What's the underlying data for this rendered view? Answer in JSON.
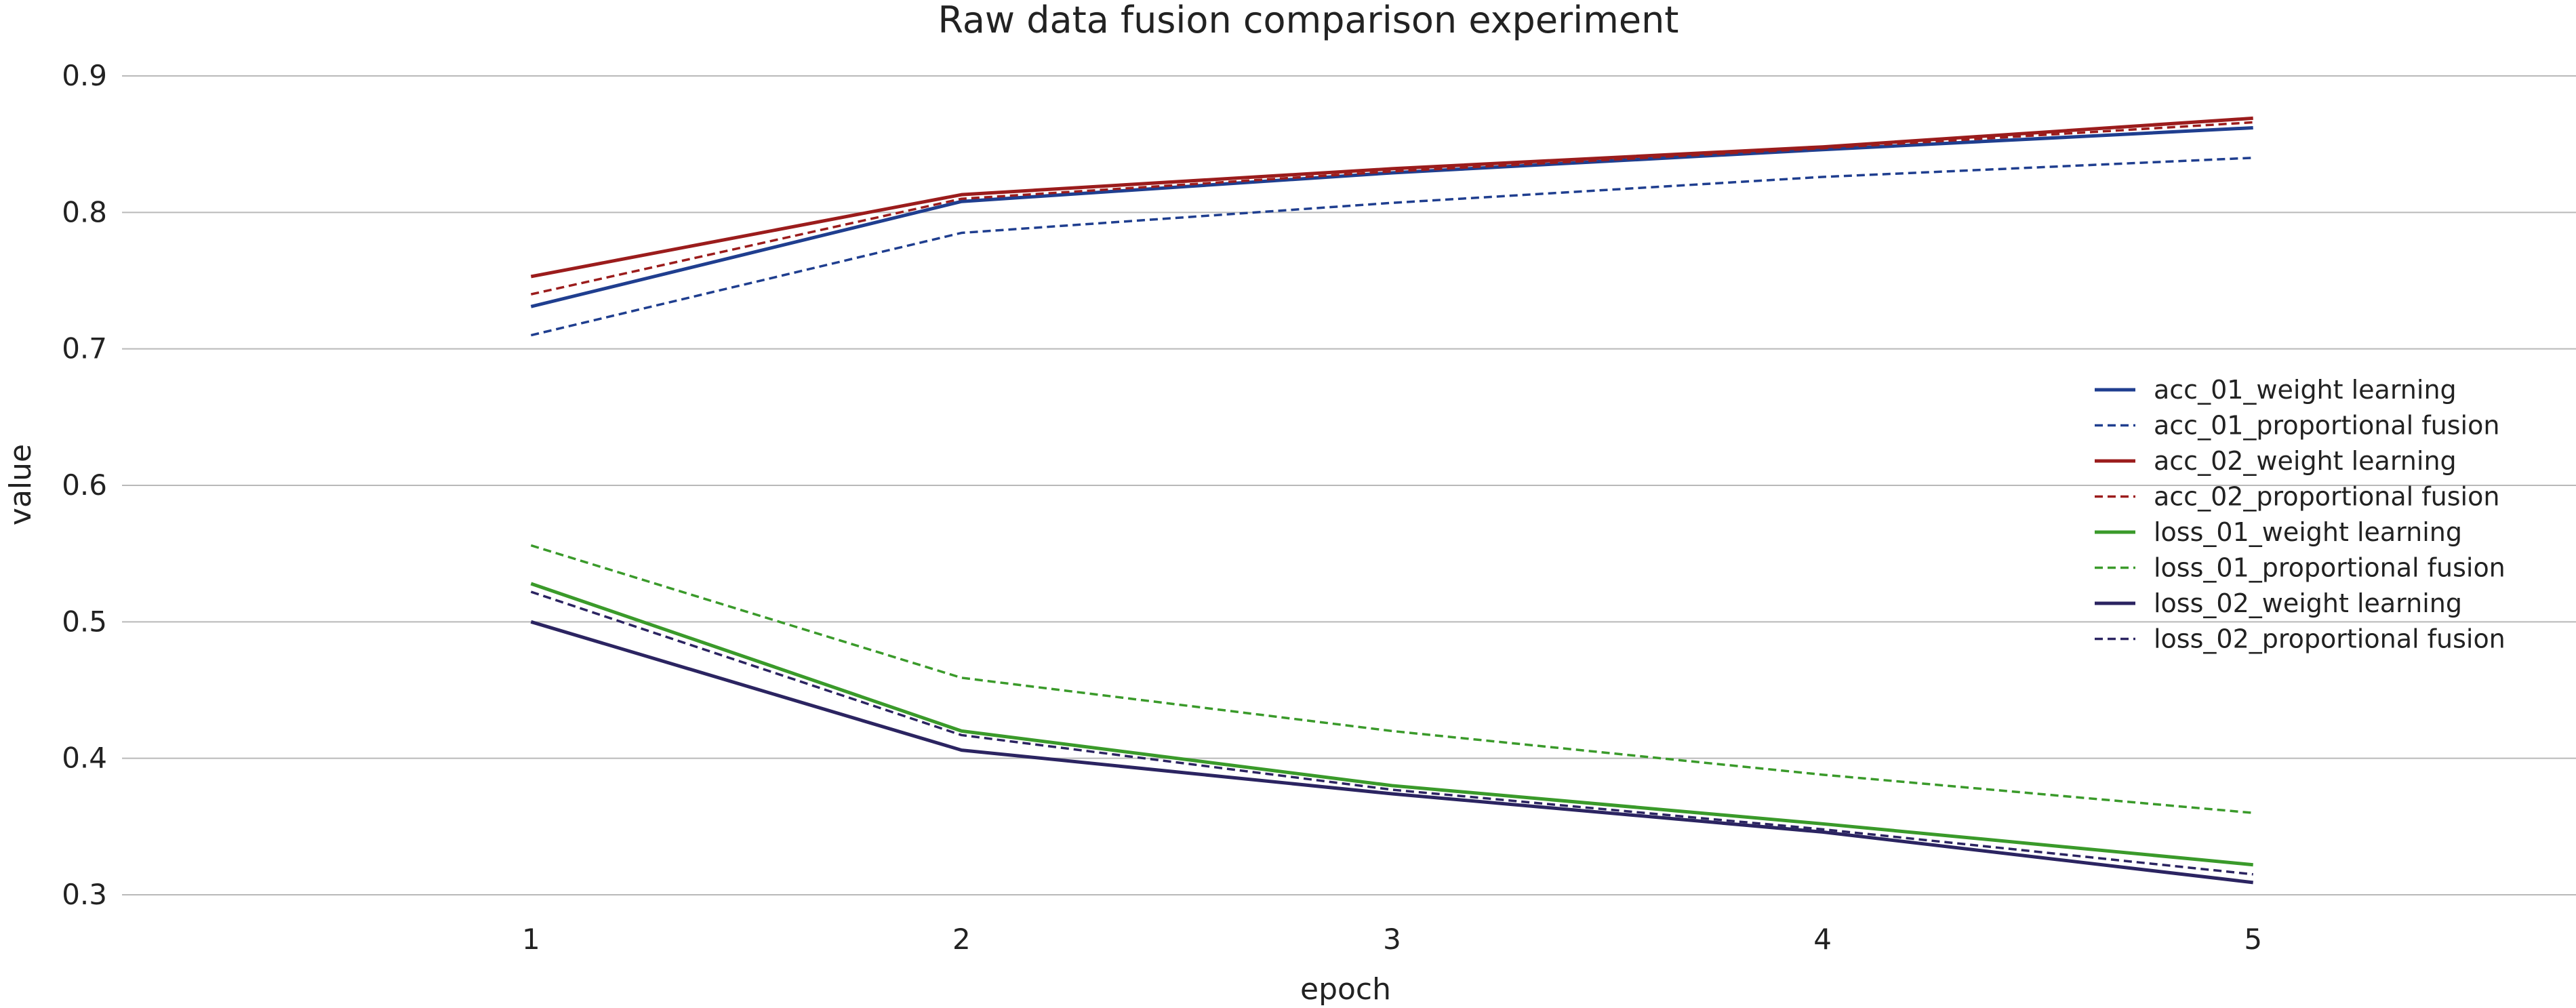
{
  "chart_data": {
    "type": "line",
    "title": "Raw data fusion comparison experiment",
    "xlabel": "epoch",
    "ylabel": "value",
    "x": [
      1,
      2,
      3,
      4,
      5
    ],
    "xlim": [
      0.05,
      5.75
    ],
    "ylim": [
      0.3,
      0.9
    ],
    "yticks": [
      "0.3",
      "0.4",
      "0.5",
      "0.6",
      "0.7",
      "0.8",
      "0.9"
    ],
    "xticks": [
      "1",
      "2",
      "3",
      "4",
      "5"
    ],
    "grid": "horizontal",
    "legend_position": "right",
    "series": [
      {
        "name": "acc_01_weight learning",
        "color": "#1f3e8f",
        "dash": "solid",
        "values": [
          0.731,
          0.808,
          0.829,
          0.846,
          0.862
        ]
      },
      {
        "name": "acc_01_proportional fusion",
        "color": "#1f3e8f",
        "dash": "dashed",
        "values": [
          0.71,
          0.785,
          0.807,
          0.826,
          0.84
        ]
      },
      {
        "name": "acc_02_weight learning",
        "color": "#9b1c1c",
        "dash": "solid",
        "values": [
          0.753,
          0.813,
          0.832,
          0.848,
          0.869
        ]
      },
      {
        "name": "acc_02_proportional fusion",
        "color": "#9b1c1c",
        "dash": "dashed",
        "values": [
          0.74,
          0.81,
          0.83,
          0.847,
          0.866
        ]
      },
      {
        "name": "loss_01_weight learning",
        "color": "#3a9a2a",
        "dash": "solid",
        "values": [
          0.528,
          0.42,
          0.38,
          0.352,
          0.322
        ]
      },
      {
        "name": "loss_01_proportional fusion",
        "color": "#3a9a2a",
        "dash": "dashed",
        "values": [
          0.556,
          0.459,
          0.42,
          0.388,
          0.36
        ]
      },
      {
        "name": "loss_02_weight learning",
        "color": "#2b2461",
        "dash": "solid",
        "values": [
          0.5,
          0.406,
          0.374,
          0.346,
          0.309
        ]
      },
      {
        "name": "loss_02_proportional fusion",
        "color": "#2b2461",
        "dash": "dashed",
        "values": [
          0.522,
          0.417,
          0.377,
          0.348,
          0.315
        ]
      }
    ]
  }
}
